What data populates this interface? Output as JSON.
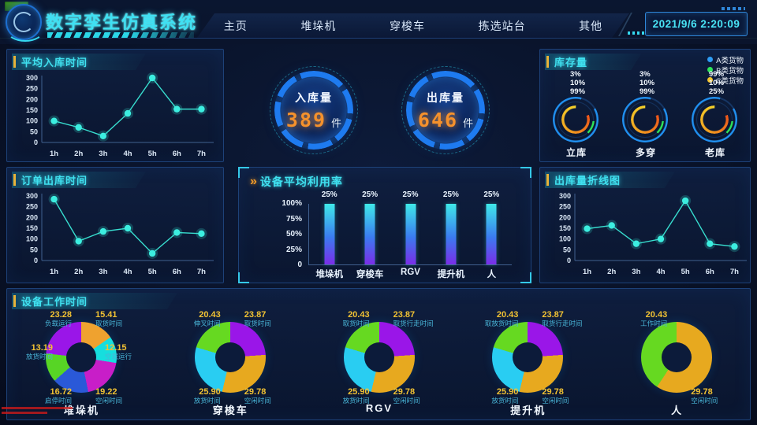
{
  "header": {
    "title": "数字孪生仿真系统",
    "nav": [
      {
        "label": "主页"
      },
      {
        "label": "堆垛机"
      },
      {
        "label": "穿梭车"
      },
      {
        "label": "拣选站台"
      },
      {
        "label": "其他"
      }
    ],
    "datetime": "2021/9/6 2:20:09"
  },
  "panels": {
    "avg_inbound": {
      "title": "平均入库时间",
      "categories": [
        "1h",
        "2h",
        "3h",
        "4h",
        "5h",
        "6h",
        "7h"
      ],
      "values": [
        100,
        70,
        30,
        135,
        300,
        155,
        155
      ],
      "yticks": [
        "300",
        "250",
        "200",
        "150",
        "100",
        "50",
        "0"
      ],
      "ymax": 300
    },
    "order_outbound": {
      "title": "订单出库时间",
      "categories": [
        "1h",
        "2h",
        "3h",
        "4h",
        "5h",
        "6h",
        "7h"
      ],
      "values": [
        285,
        90,
        135,
        150,
        33,
        130,
        125
      ],
      "yticks": [
        "300",
        "250",
        "200",
        "150",
        "100",
        "50",
        "0"
      ],
      "ymax": 300
    },
    "outbound_line": {
      "title": "出库量折线图",
      "categories": [
        "1h",
        "2h",
        "3h",
        "4h",
        "5h",
        "6h",
        "7h"
      ],
      "values": [
        148,
        163,
        78,
        100,
        278,
        78,
        65
      ],
      "yticks": [
        "300",
        "250",
        "200",
        "150",
        "100",
        "50",
        "0"
      ],
      "ymax": 300
    },
    "gauges": {
      "inbound": {
        "label": "入库量",
        "value": "389",
        "unit": "件"
      },
      "outbound": {
        "label": "出库量",
        "value": "646",
        "unit": "件"
      }
    },
    "utilization": {
      "chevron": "»",
      "title": "设备平均利用率",
      "yticks": [
        "100%",
        "75%",
        "50%",
        "25%",
        "0"
      ],
      "bars": [
        {
          "category": "堆垛机",
          "label": "25%",
          "fill": 100
        },
        {
          "category": "穿梭车",
          "label": "25%",
          "fill": 100
        },
        {
          "category": "RGV",
          "label": "25%",
          "fill": 100
        },
        {
          "category": "提升机",
          "label": "25%",
          "fill": 100
        },
        {
          "category": "人",
          "label": "25%",
          "fill": 100
        }
      ]
    },
    "inventory": {
      "title": "库存量",
      "legend": [
        {
          "label": "A类货物",
          "color": "#2e9df5"
        },
        {
          "label": "B类货物",
          "color": "#2ee65a"
        },
        {
          "label": "C类货物",
          "color": "#f5c42a"
        }
      ],
      "groups": [
        {
          "name": "立库",
          "values": [
            "3%",
            "10%",
            "99%"
          ]
        },
        {
          "name": "多穿",
          "values": [
            "3%",
            "10%",
            "99%"
          ]
        },
        {
          "name": "老库",
          "values": [
            "99%",
            "10%",
            "25%"
          ]
        }
      ]
    },
    "worktime": {
      "title": "设备工作时间",
      "donuts": [
        {
          "machine": "堆垛机",
          "slices": [
            {
              "label": "取货时间",
              "value": "15.41",
              "color": "#efa22f",
              "slot": "tr"
            },
            {
              "label": "空载运行",
              "value": "12.15",
              "color": "#16dede",
              "slot": "r"
            },
            {
              "label": "空闲时间",
              "value": "19.22",
              "color": "#c81ec8",
              "slot": "br"
            },
            {
              "label": "启停时间",
              "value": "16.72",
              "color": "#2a59d8",
              "slot": "bl"
            },
            {
              "label": "放货时间",
              "value": "13.19",
              "color": "#57d525",
              "slot": "l"
            },
            {
              "label": "负载运行",
              "value": "23.28",
              "color": "#9a16e8",
              "slot": "tl"
            }
          ]
        },
        {
          "machine": "穿梭车",
          "slices": [
            {
              "label": "取货时间",
              "value": "23.87",
              "color": "#9a16e8",
              "slot": "tr"
            },
            {
              "label": "空闲时间",
              "value": "29.78",
              "color": "#e7a91f",
              "slot": "br"
            },
            {
              "label": "放货时间",
              "value": "25.90",
              "color": "#29cdf2",
              "slot": "bl"
            },
            {
              "label": "伸叉时间",
              "value": "20.43",
              "color": "#66d921",
              "slot": "tl"
            }
          ]
        },
        {
          "machine": "RGV",
          "slices": [
            {
              "label": "取货行走时间",
              "value": "23.87",
              "color": "#9a16e8",
              "slot": "tr"
            },
            {
              "label": "空闲时间",
              "value": "29.78",
              "color": "#e7a91f",
              "slot": "br"
            },
            {
              "label": "放货时间",
              "value": "25.90",
              "color": "#29cdf2",
              "slot": "bl"
            },
            {
              "label": "取货时间",
              "value": "20.43",
              "color": "#66d921",
              "slot": "tl"
            }
          ]
        },
        {
          "machine": "提升机",
          "slices": [
            {
              "label": "取货行走时间",
              "value": "23.87",
              "color": "#9a16e8",
              "slot": "tr"
            },
            {
              "label": "空闲时间",
              "value": "29.78",
              "color": "#e7a91f",
              "slot": "br"
            },
            {
              "label": "放货时间",
              "value": "25.90",
              "color": "#29cdf2",
              "slot": "bl"
            },
            {
              "label": "取放货时间",
              "value": "20.43",
              "color": "#66d921",
              "slot": "tl"
            }
          ]
        },
        {
          "machine": "人",
          "slices": [
            {
              "label": "空闲时间",
              "value": "29.78",
              "color": "#e7a91f",
              "slot": "br"
            },
            {
              "label": "工作时间",
              "value": "20.43",
              "color": "#66d921",
              "slot": "tl"
            }
          ]
        }
      ]
    }
  },
  "chart_data": [
    {
      "type": "line",
      "title": "平均入库时间",
      "x": [
        "1h",
        "2h",
        "3h",
        "4h",
        "5h",
        "6h",
        "7h"
      ],
      "values": [
        100,
        70,
        30,
        135,
        300,
        155,
        155
      ],
      "ylim": [
        0,
        300
      ]
    },
    {
      "type": "line",
      "title": "订单出库时间",
      "x": [
        "1h",
        "2h",
        "3h",
        "4h",
        "5h",
        "6h",
        "7h"
      ],
      "values": [
        285,
        90,
        135,
        150,
        33,
        130,
        125
      ],
      "ylim": [
        0,
        300
      ]
    },
    {
      "type": "line",
      "title": "出库量折线图",
      "x": [
        "1h",
        "2h",
        "3h",
        "4h",
        "5h",
        "6h",
        "7h"
      ],
      "values": [
        148,
        163,
        78,
        100,
        278,
        78,
        65
      ],
      "ylim": [
        0,
        300
      ]
    },
    {
      "type": "bar",
      "title": "设备平均利用率",
      "categories": [
        "堆垛机",
        "穿梭车",
        "RGV",
        "提升机",
        "人"
      ],
      "values": [
        "25%",
        "25%",
        "25%",
        "25%",
        "25%"
      ],
      "ylim": [
        "0",
        "100%"
      ]
    },
    {
      "type": "pie",
      "title": "库存量",
      "groups": [
        {
          "name": "立库",
          "A": "3%",
          "B": "10%",
          "C": "99%"
        },
        {
          "name": "多穿",
          "A": "3%",
          "B": "10%",
          "C": "99%"
        },
        {
          "name": "老库",
          "A": "99%",
          "B": "10%",
          "C": "25%"
        }
      ]
    },
    {
      "type": "pie",
      "title": "设备工作时间",
      "note": "five donuts, values listed in panels.worktime.donuts"
    }
  ]
}
